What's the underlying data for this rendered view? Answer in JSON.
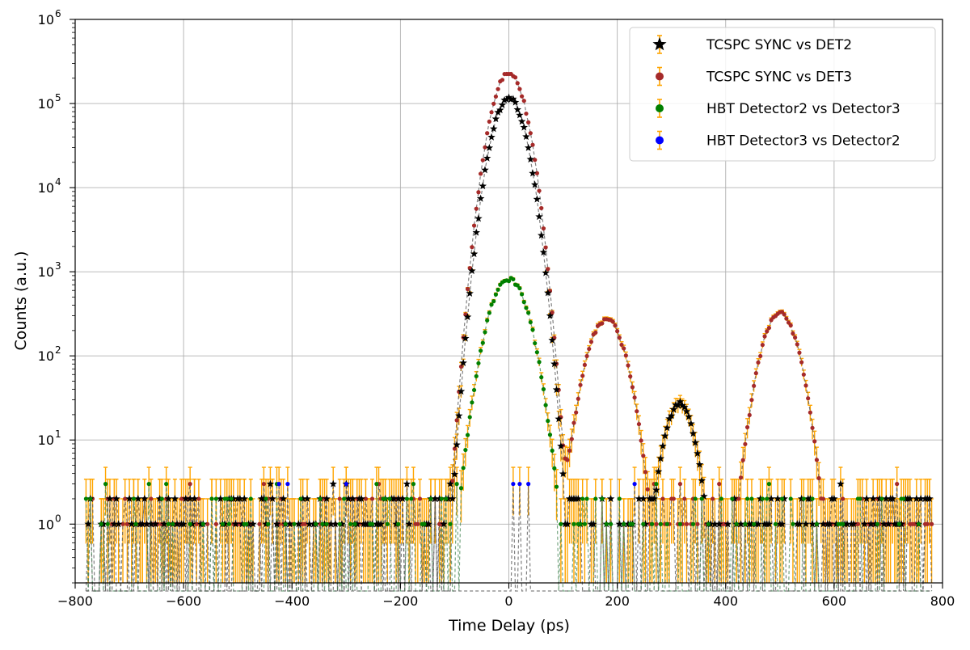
{
  "chart_data": {
    "type": "scatter",
    "title": "",
    "xlabel": "Time Delay (ps)",
    "ylabel": "Counts (a.u.)",
    "xlim": [
      -800,
      800
    ],
    "ylim": [
      0.2,
      1000000
    ],
    "yscale": "log",
    "grid": true,
    "legend_position": "top-right",
    "x_ticks": [
      -800,
      -600,
      -400,
      -200,
      0,
      200,
      400,
      600,
      800
    ],
    "x_tick_labels": [
      "−800",
      "−600",
      "−400",
      "−200",
      "0",
      "200",
      "400",
      "600",
      "800"
    ],
    "y_ticks": [
      1,
      10,
      100,
      1000,
      10000,
      100000,
      1000000
    ],
    "y_tick_labels": [
      {
        "base": "10",
        "exp": "0"
      },
      {
        "base": "10",
        "exp": "1"
      },
      {
        "base": "10",
        "exp": "2"
      },
      {
        "base": "10",
        "exp": "3"
      },
      {
        "base": "10",
        "exp": "4"
      },
      {
        "base": "10",
        "exp": "5"
      },
      {
        "base": "10",
        "exp": "6"
      }
    ],
    "errorbar_color": "#ffa500",
    "bin_width_ps": 4,
    "noise_level_approx": 1,
    "series": [
      {
        "name": "TCSPC SYNC vs DET2",
        "marker": "star",
        "color": "#000000",
        "peaks": [
          {
            "center": 0,
            "height": 115000,
            "sigma": 22
          },
          {
            "center": 315,
            "height": 27,
            "sigma": 20
          }
        ]
      },
      {
        "name": "TCSPC SYNC vs DET3",
        "marker": "circle",
        "color": "#a52a2a",
        "peaks": [
          {
            "center": 0,
            "height": 230000,
            "sigma": 22
          },
          {
            "center": 180,
            "height": 270,
            "sigma": 25
          },
          {
            "center": 500,
            "height": 320,
            "sigma": 24
          }
        ]
      },
      {
        "name": "HBT Detector2 vs Detector3",
        "marker": "circle",
        "color": "#008000",
        "peaks": [
          {
            "center": 0,
            "height": 820,
            "sigma": 26
          }
        ]
      },
      {
        "name": "HBT Detector3 vs Detector2",
        "marker": "circle",
        "color": "#0000ff",
        "peaks": []
      }
    ]
  }
}
